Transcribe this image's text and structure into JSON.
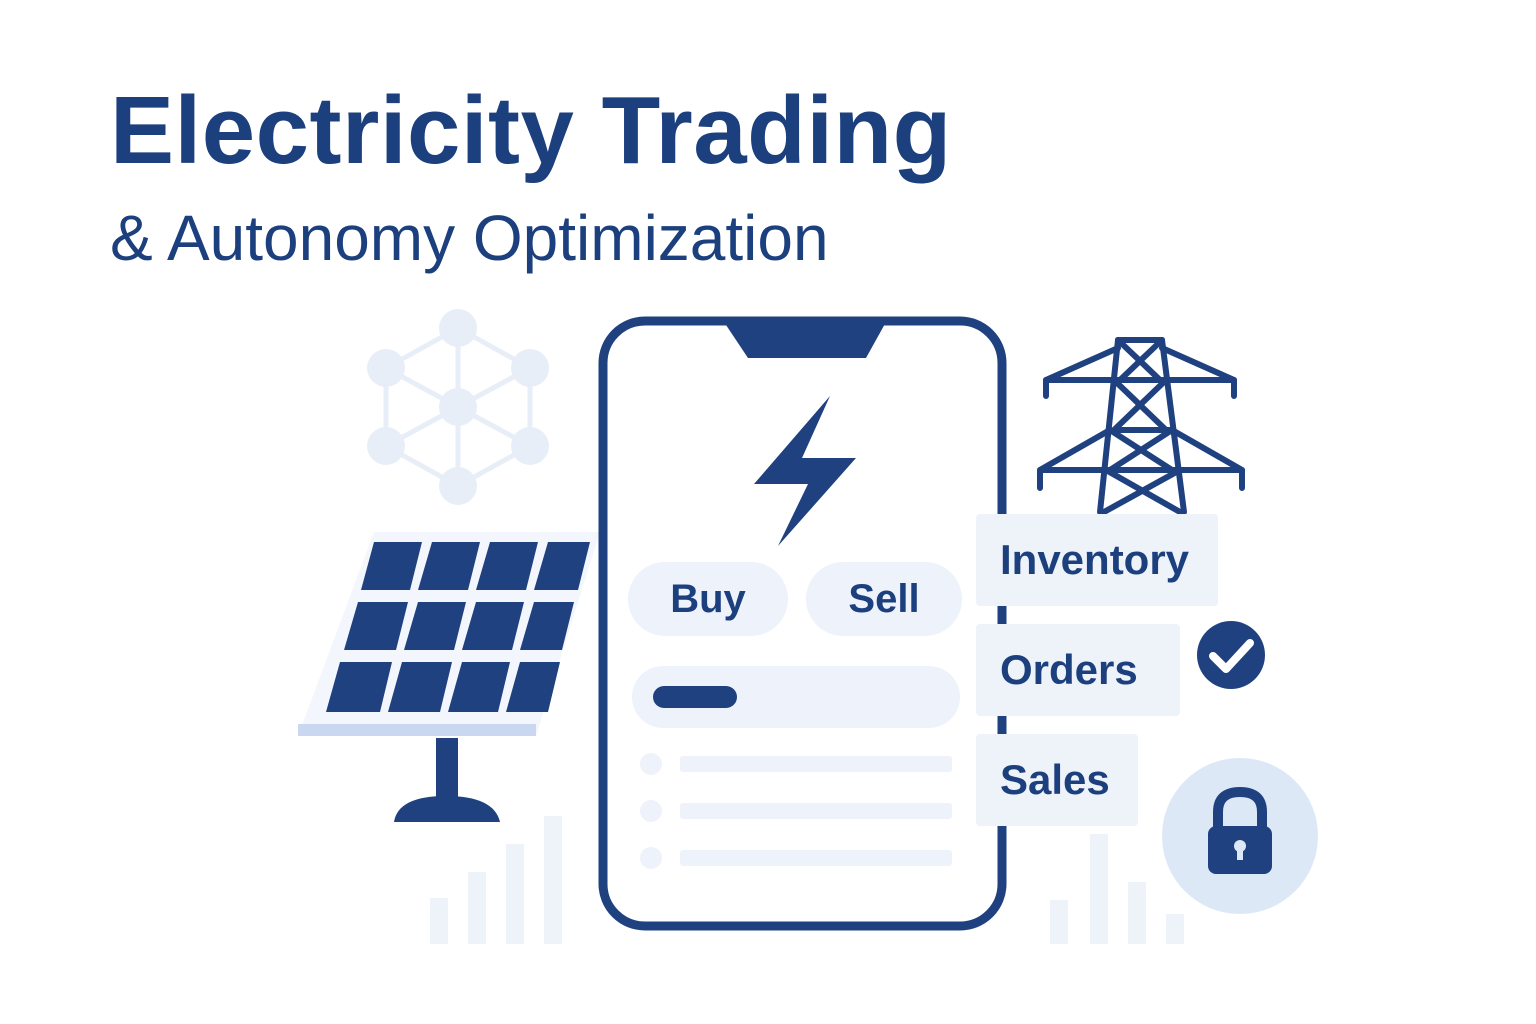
{
  "header": {
    "title": "Electricity Trading",
    "subtitle": "& Autonomy Optimization"
  },
  "phone": {
    "buy_label": "Buy",
    "sell_label": "Sell"
  },
  "menu": {
    "items": [
      {
        "label": "Inventory"
      },
      {
        "label": "Orders"
      },
      {
        "label": "Sales"
      }
    ]
  },
  "icons": [
    "network-icon",
    "solar-panel-icon",
    "lightning-bolt-icon",
    "power-tower-icon",
    "check-icon",
    "lock-icon",
    "bar-chart-icon"
  ],
  "colors": {
    "brand_navy": "#1c3f7e",
    "soft_blue": "#edf2fb",
    "pale_blue": "#dfe9f8"
  }
}
